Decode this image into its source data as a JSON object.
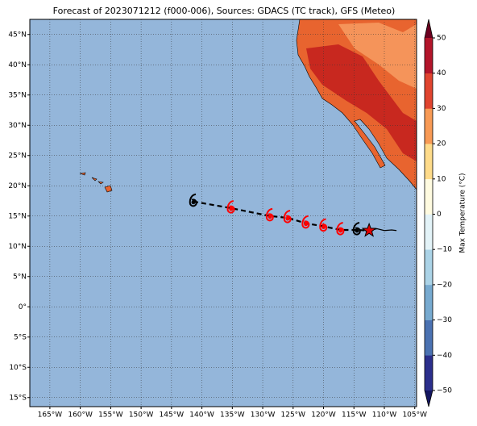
{
  "title": "Forecast of 2023071212 (f000-006), Sources: GDACS (TC track), GFS (Meteo)",
  "map": {
    "xlim": [
      -168.3,
      -104.7
    ],
    "ylim": [
      -16.5,
      47.5
    ],
    "ocean_color": "#94b6da",
    "grid": true,
    "xticks": [
      {
        "value": -165,
        "label": "165°W"
      },
      {
        "value": -160,
        "label": "160°W"
      },
      {
        "value": -155,
        "label": "155°W"
      },
      {
        "value": -150,
        "label": "150°W"
      },
      {
        "value": -145,
        "label": "145°W"
      },
      {
        "value": -140,
        "label": "140°W"
      },
      {
        "value": -135,
        "label": "135°W"
      },
      {
        "value": -130,
        "label": "130°W"
      },
      {
        "value": -125,
        "label": "125°W"
      },
      {
        "value": -120,
        "label": "120°W"
      },
      {
        "value": -115,
        "label": "115°W"
      },
      {
        "value": -110,
        "label": "110°W"
      },
      {
        "value": -105,
        "label": "105°W"
      }
    ],
    "yticks": [
      {
        "value": -15,
        "label": "15°S"
      },
      {
        "value": -10,
        "label": "10°S"
      },
      {
        "value": -5,
        "label": "5°S"
      },
      {
        "value": 0,
        "label": "0°"
      },
      {
        "value": 5,
        "label": "5°N"
      },
      {
        "value": 10,
        "label": "10°N"
      },
      {
        "value": 15,
        "label": "15°N"
      },
      {
        "value": 20,
        "label": "20°N"
      },
      {
        "value": 25,
        "label": "25°N"
      },
      {
        "value": 30,
        "label": "30°N"
      },
      {
        "value": 35,
        "label": "35°N"
      },
      {
        "value": 40,
        "label": "40°N"
      },
      {
        "value": 45,
        "label": "45°N"
      }
    ]
  },
  "track": {
    "lon": [
      -141.4,
      -135.2,
      -128.8,
      -125.9,
      -122.9,
      -120.0,
      -117.2,
      -114.5
    ],
    "lat": [
      17.4,
      16.3,
      15.0,
      14.7,
      13.8,
      13.3,
      12.7,
      12.7
    ],
    "colors": [
      "#000000",
      "#ff0000",
      "#ff0000",
      "#ff0000",
      "#ff0000",
      "#ff0000",
      "#ff0000",
      "#000000"
    ],
    "current": {
      "lon": -112.5,
      "lat": 12.6,
      "color": "#e00000"
    },
    "observed": {
      "lon": [
        -112.5,
        -111.2,
        -110.0,
        -108.8,
        -108.0
      ],
      "lat": [
        12.6,
        12.9,
        12.6,
        12.7,
        12.6
      ]
    }
  },
  "colorbar": {
    "label": "Max Temperature (°C)",
    "lim": [
      -50,
      50
    ],
    "colors": [
      "#2b2f8c",
      "#4b72b2",
      "#77aad0",
      "#abd3e7",
      "#e3f3f8",
      "#fffbe0",
      "#fedb8a",
      "#f89a55",
      "#e0442f",
      "#b3152a"
    ],
    "under": "#141660",
    "over": "#6b001f",
    "ticks": [
      {
        "value": -50,
        "label": "−50"
      },
      {
        "value": -40,
        "label": "−40"
      },
      {
        "value": -30,
        "label": "−30"
      },
      {
        "value": -20,
        "label": "−20"
      },
      {
        "value": -10,
        "label": "−10"
      },
      0,
      10,
      20,
      30,
      40,
      50
    ]
  }
}
